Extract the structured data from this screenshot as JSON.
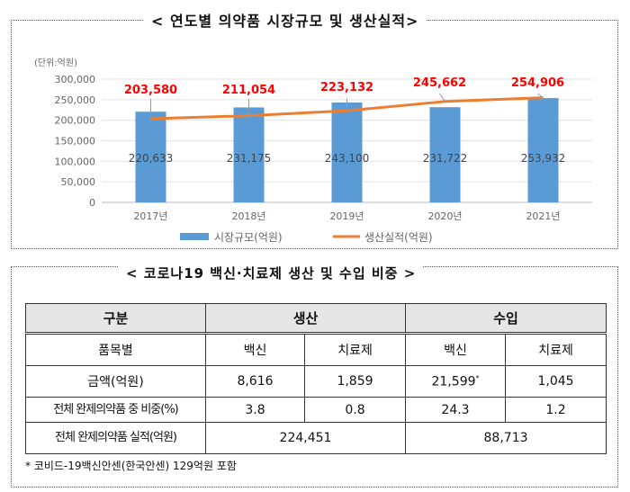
{
  "chart_section": {
    "title": "< 연도별 의약품 시장규모 및 생산실적>"
  },
  "chart_data": {
    "type": "bar+line",
    "title": "< 연도별 의약품 시장규모 및 생산실적>",
    "unit_label": "(단위:억원)",
    "categories": [
      "2017년",
      "2018년",
      "2019년",
      "2020년",
      "2021년"
    ],
    "series": [
      {
        "name": "시장규모(억원)",
        "type": "bar",
        "color": "#5b9bd5",
        "values": [
          220633,
          231175,
          243100,
          231722,
          253932
        ],
        "labels": [
          "220,633",
          "231,175",
          "243,100",
          "231,722",
          "253,932"
        ]
      },
      {
        "name": "생산실적(억원)",
        "type": "line",
        "color": "#ed7d31",
        "values": [
          203580,
          211054,
          223132,
          245662,
          254906
        ],
        "labels": [
          "203,580",
          "211,054",
          "223,132",
          "245,662",
          "254,906"
        ]
      }
    ],
    "ylim": [
      0,
      300000
    ],
    "yticks": [
      "0",
      "50,000",
      "100,000",
      "150,000",
      "200,000",
      "250,000",
      "300,000"
    ],
    "grid": true,
    "legend": "bottom",
    "label_color": "#ff0000"
  },
  "table_section": {
    "title": "< 코로나19 백신·치료제 생산 및 수입 비중 >",
    "header": {
      "category": "구분",
      "production": "생산",
      "import": "수입"
    },
    "rows": [
      {
        "label": "품목별",
        "cells": [
          "백신",
          "치료제",
          "백신",
          "치료제"
        ]
      },
      {
        "label": "금액(억원)",
        "cells": [
          "8,616",
          "1,859",
          "21,599",
          "1,045"
        ],
        "mark": "*"
      },
      {
        "label": "전체 완제의약품 중 비중(%)",
        "cells": [
          "3.8",
          "0.8",
          "24.3",
          "1.2"
        ]
      }
    ],
    "total_row": {
      "label": "전체 완제의약품 실적(억원)",
      "production": "224,451",
      "import": "88,713"
    },
    "footnote": "* 코비드-19백신안센(한국안센) 129억원 포함"
  }
}
